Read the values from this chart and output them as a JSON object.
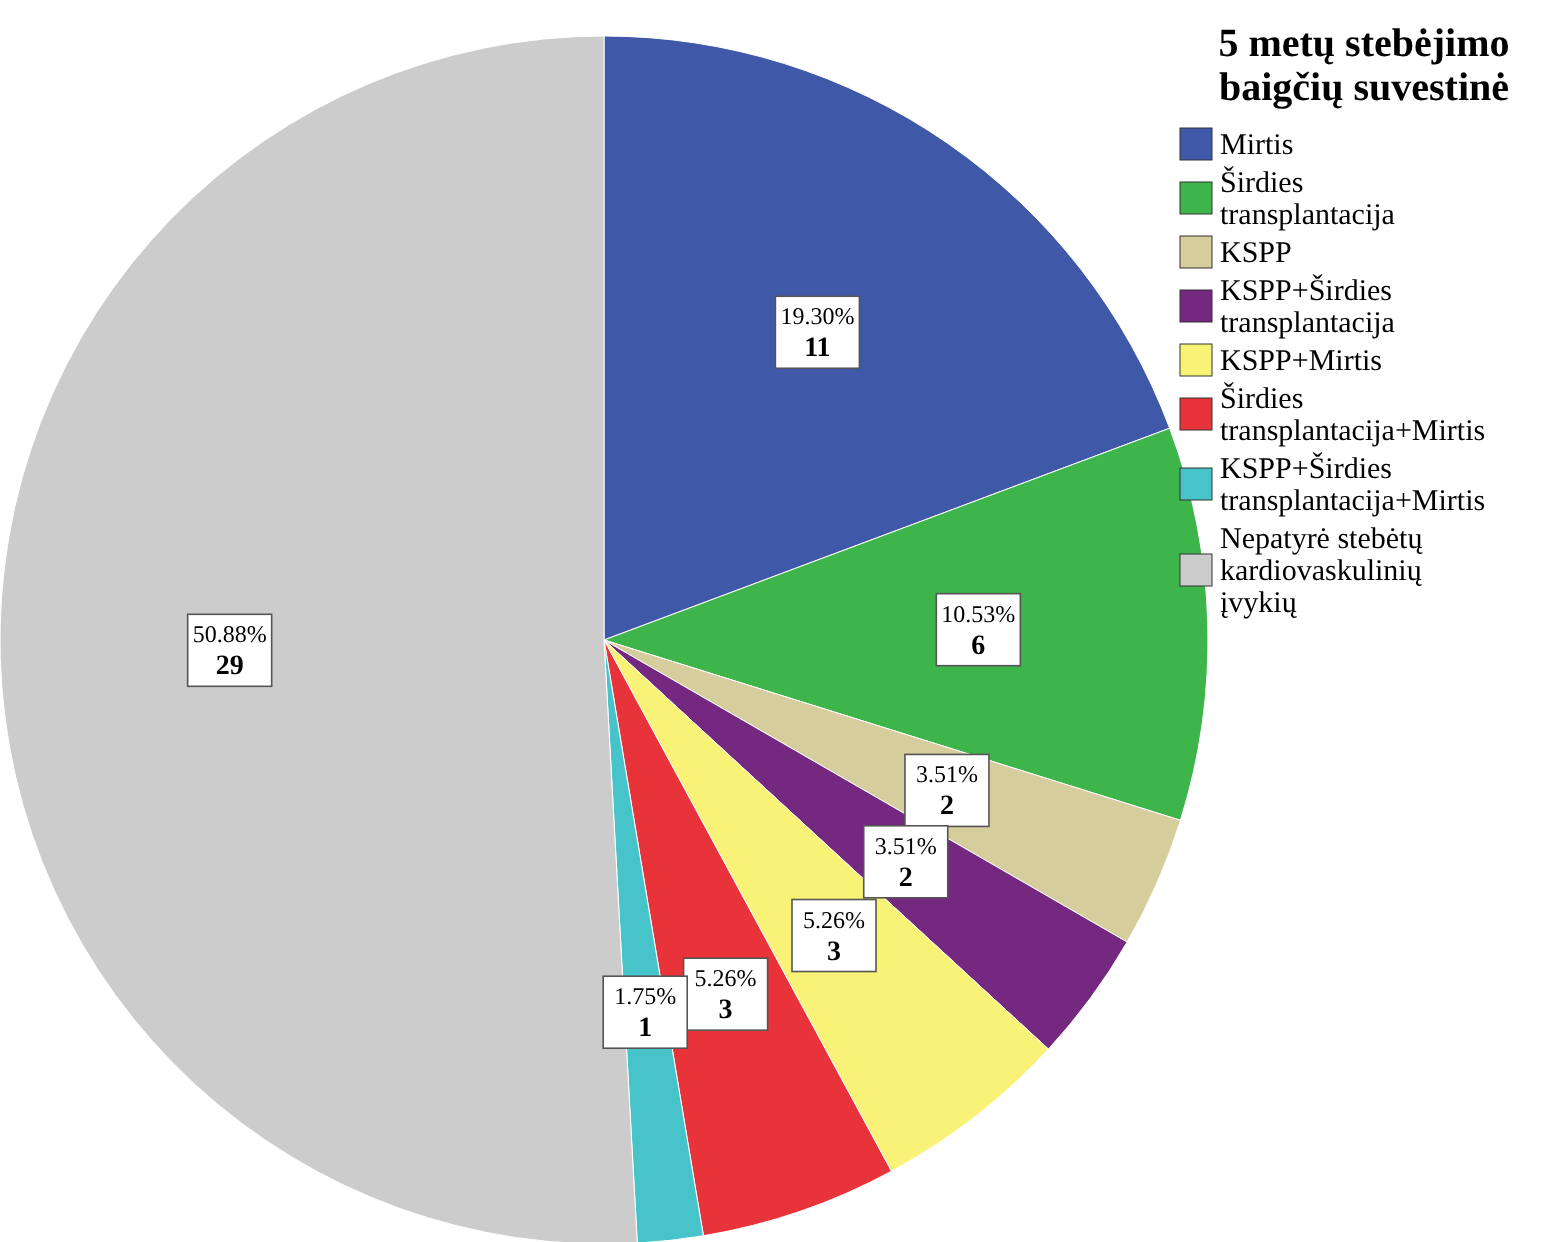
{
  "chart_data": {
    "type": "pie",
    "legend_title": "5 metų stebėjimo baigčių suvestinė",
    "legend": "right",
    "categories": [
      "Mirtis",
      "Širdies transplantacija",
      "KSPP",
      "KSPP+Širdies transplantacija",
      "KSPP+Mirtis",
      "Širdies transplantacija+Mirtis",
      "KSPP+Širdies transplantacija+Mirtis",
      "Nepatyrė stebėtų kardiovaskulinių įvykių"
    ],
    "values": [
      11,
      6,
      2,
      2,
      3,
      3,
      1,
      29
    ],
    "value_labels": [
      "19.30%\n11",
      "10.53%\n6",
      "3.51%\n2",
      "3.51%\n2",
      "5.26%\n3",
      "5.26%\n3",
      "1.75%\n1",
      "50.88%\n29"
    ],
    "colors": [
      "#3f58a8",
      "#3db54a",
      "#d6cd9d",
      "#74287f",
      "#f8f376",
      "#e8333a",
      "#46c4c9",
      "#cccccc"
    ]
  }
}
